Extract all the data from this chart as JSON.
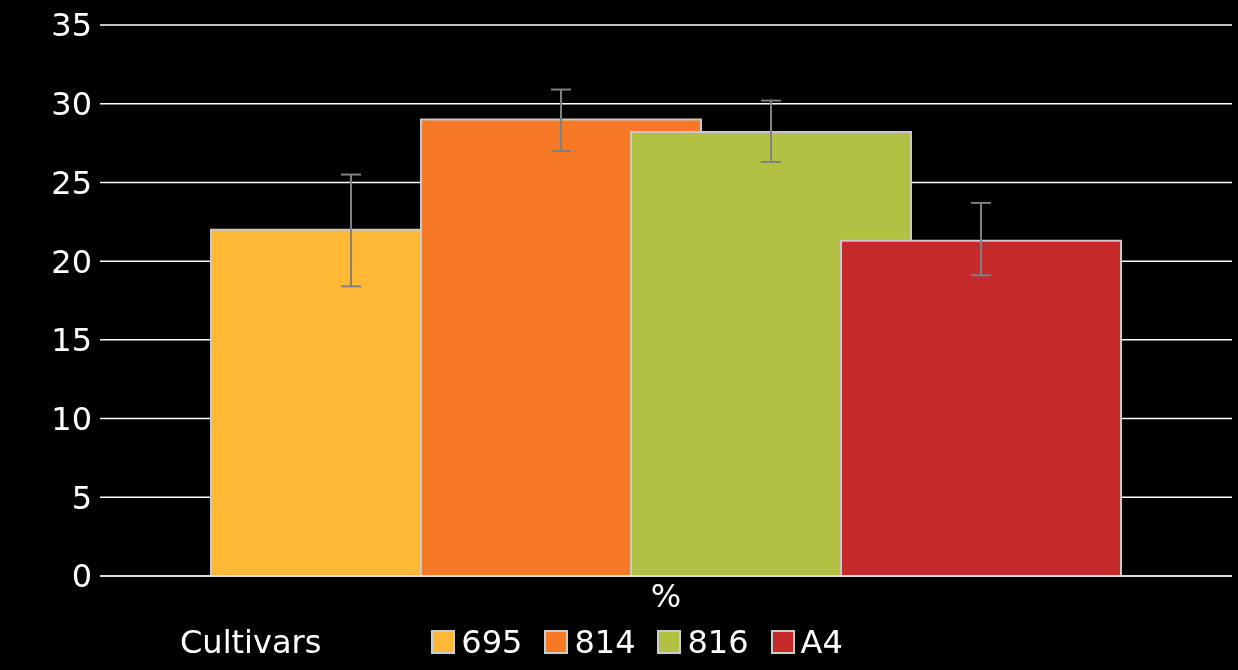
{
  "chart_data": {
    "type": "bar",
    "categories": [
      "%"
    ],
    "legend_title": "Cultivars",
    "ylim": [
      0,
      35
    ],
    "yticks": [
      0,
      5,
      10,
      15,
      20,
      25,
      30,
      35
    ],
    "grid": "y",
    "legend": "bottom",
    "series": [
      {
        "name": "695",
        "color": "#ffb835",
        "values": [
          22.0
        ],
        "errors": [
          [
            18.4,
            25.5
          ]
        ]
      },
      {
        "name": "814",
        "color": "#f77825",
        "values": [
          29.0
        ],
        "errors": [
          [
            27.0,
            30.9
          ]
        ]
      },
      {
        "name": "816",
        "color": "#b2c143",
        "values": [
          28.2
        ],
        "errors": [
          [
            26.3,
            30.2
          ]
        ]
      },
      {
        "name": "A4",
        "color": "#c5292a",
        "values": [
          21.3
        ],
        "errors": [
          [
            19.1,
            23.7
          ]
        ]
      }
    ]
  }
}
